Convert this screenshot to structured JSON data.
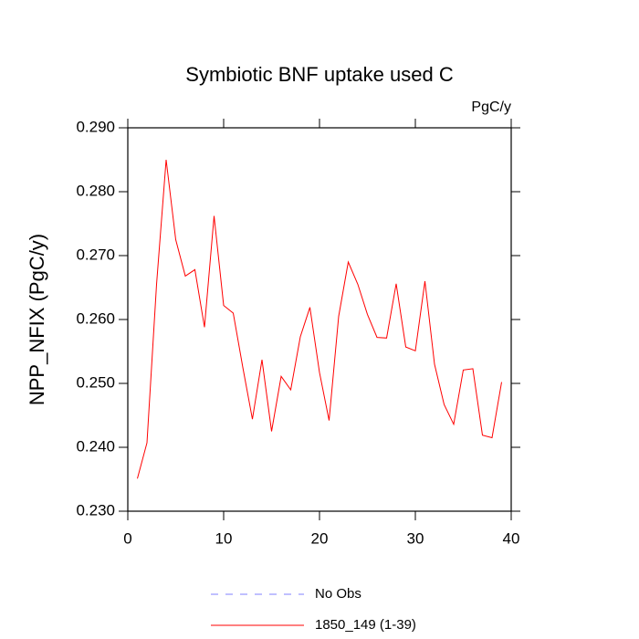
{
  "chart_data": {
    "type": "line",
    "title": "Symbiotic BNF uptake used C",
    "units": "PgC/y",
    "y_label": "NPP_NFIX  (PgC/y)",
    "x": [
      1,
      2,
      3,
      4,
      5,
      6,
      7,
      8,
      9,
      10,
      11,
      12,
      13,
      14,
      15,
      16,
      17,
      18,
      19,
      20,
      21,
      22,
      23,
      24,
      25,
      26,
      27,
      28,
      29,
      30,
      31,
      32,
      33,
      34,
      35,
      36,
      37,
      38,
      39
    ],
    "series": [
      {
        "name": "1850_149 (1-39)",
        "color": "#ff0000",
        "values": [
          0.2351,
          0.2407,
          0.2655,
          0.285,
          0.2725,
          0.2668,
          0.2678,
          0.2588,
          0.2762,
          0.2622,
          0.261,
          0.2525,
          0.2444,
          0.2537,
          0.2425,
          0.2511,
          0.249,
          0.2573,
          0.2619,
          0.2517,
          0.2442,
          0.2605,
          0.269,
          0.2655,
          0.2608,
          0.2572,
          0.2571,
          0.2656,
          0.2557,
          0.2551,
          0.266,
          0.253,
          0.2467,
          0.2436,
          0.2521,
          0.2523,
          0.2419,
          0.2415,
          0.2502
        ]
      }
    ],
    "legend_entries": [
      {
        "name": "No Obs",
        "color": "#8080ff",
        "dashed": true
      }
    ],
    "xlim": [
      0,
      40
    ],
    "xticks": [
      0,
      10,
      20,
      30,
      40
    ],
    "ylim": [
      0.23,
      0.29
    ],
    "yticks": [
      {
        "value": 0.23,
        "label": "0.230"
      },
      {
        "value": 0.24,
        "label": "0.240"
      },
      {
        "value": 0.25,
        "label": "0.250"
      },
      {
        "value": 0.26,
        "label": "0.260"
      },
      {
        "value": 0.27,
        "label": "0.270"
      },
      {
        "value": 0.28,
        "label": "0.280"
      },
      {
        "value": 0.29,
        "label": "0.290"
      }
    ]
  }
}
